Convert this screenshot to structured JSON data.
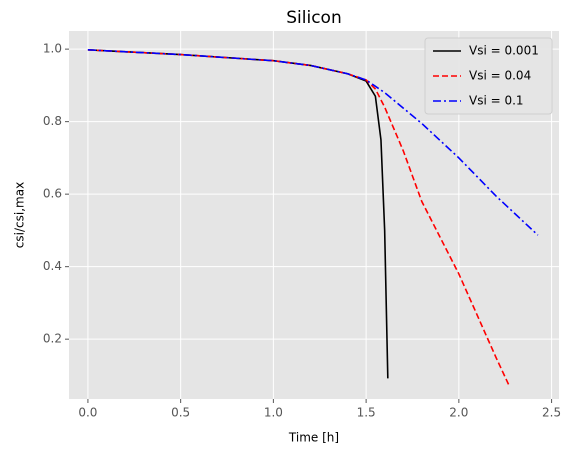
{
  "chart_data": {
    "type": "line",
    "title": "Silicon",
    "xlabel": "Time [h]",
    "ylabel": "csi/csi,max",
    "xlim": [
      -0.102,
      2.54
    ],
    "ylim": [
      0.035,
      1.05
    ],
    "xticks": [
      {
        "value": 0,
        "label": "0.0"
      },
      0.5,
      {
        "value": 1,
        "label": "1.0"
      },
      1.5,
      {
        "value": 2,
        "label": "2.0"
      },
      2.5
    ],
    "yticks": [
      0.2,
      0.4,
      0.6,
      0.8,
      {
        "value": 1,
        "label": "1.0"
      }
    ],
    "grid": true,
    "legend": "upper right",
    "series": [
      {
        "name": "Vsi = 0.001",
        "color": "#000000",
        "style": "solid",
        "x": [
          0,
          0.5,
          1.0,
          1.2,
          1.4,
          1.5,
          1.55,
          1.58,
          1.6,
          1.617
        ],
        "values": [
          0.998,
          0.985,
          0.968,
          0.955,
          0.932,
          0.912,
          0.87,
          0.75,
          0.5,
          0.092
        ]
      },
      {
        "name": "Vsi = 0.04",
        "color": "#ff0000",
        "style": "dashed",
        "x": [
          0,
          0.5,
          1.0,
          1.2,
          1.4,
          1.5,
          1.55,
          1.6,
          1.7,
          1.8,
          2.0,
          2.2,
          2.27
        ],
        "values": [
          0.998,
          0.985,
          0.968,
          0.955,
          0.932,
          0.915,
          0.89,
          0.84,
          0.72,
          0.58,
          0.38,
          0.15,
          0.073
        ]
      },
      {
        "name": "Vsi = 0.1",
        "color": "#0000ff",
        "style": "dashdot",
        "x": [
          0,
          0.5,
          1.0,
          1.2,
          1.4,
          1.5,
          1.6,
          1.8,
          2.0,
          2.2,
          2.426
        ],
        "values": [
          0.998,
          0.985,
          0.968,
          0.955,
          0.932,
          0.915,
          0.88,
          0.795,
          0.7,
          0.595,
          0.487
        ]
      }
    ]
  }
}
